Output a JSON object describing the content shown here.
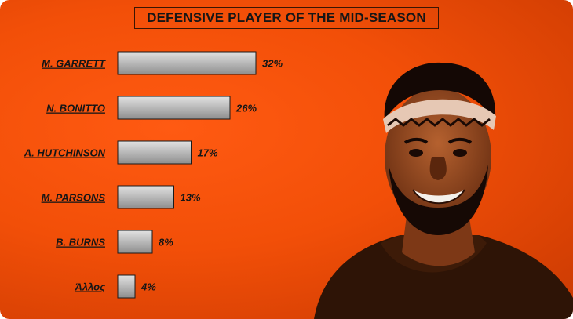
{
  "chart_data": {
    "type": "bar",
    "orientation": "horizontal",
    "title": "DEFENSIVE PLAYER OF THE MID-SEASON",
    "categories": [
      "M. GARRETT",
      "N. BONITTO",
      "A. HUTCHINSON",
      "M. PARSONS",
      "B. BURNS",
      "Άλλος"
    ],
    "values": [
      32,
      26,
      17,
      13,
      8,
      4
    ],
    "value_labels": [
      "32%",
      "26%",
      "17%",
      "13%",
      "8%",
      "4%"
    ],
    "unit": "%",
    "xlim": [
      0,
      32
    ],
    "grid": false,
    "legend": "none"
  },
  "colors": {
    "background": "#e84a06",
    "bar_fill_light": "#d6d6d6",
    "bar_fill_dark": "#8c8c8c",
    "text": "#161616"
  },
  "image": {
    "player_photo_icon": "player-portrait-icon"
  }
}
